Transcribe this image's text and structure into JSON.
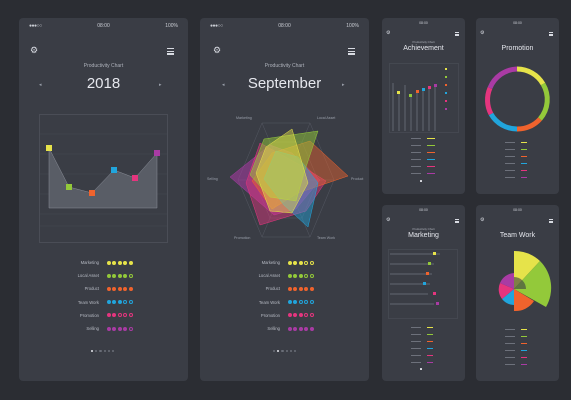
{
  "screens": [
    {
      "status": {
        "signal": "●●●○○",
        "time": "08:00",
        "battery": "100%"
      },
      "subtitle": "Productivity Chart",
      "heading": "2018",
      "categories": [
        "Marketing",
        "Local Asset",
        "Product",
        "Team Work",
        "Promotion",
        "Selling"
      ],
      "ratings": [
        5,
        4,
        5,
        3,
        2,
        4
      ],
      "colors": [
        "#e6e34a",
        "#93c93a",
        "#f0632d",
        "#21a5dc",
        "#e5357e",
        "#a93ba4"
      ],
      "pager": {
        "count": 6,
        "active": 1
      }
    },
    {
      "status": {
        "signal": "●●●○○",
        "time": "08:00",
        "battery": "100%"
      },
      "subtitle": "Productivity Chart",
      "heading": "September",
      "radar_labels": [
        "Marketing",
        "Local Asset",
        "Product",
        "Team Work",
        "Promotion",
        "Selling"
      ],
      "legend": [
        "Marketing",
        "Local Asset",
        "Product",
        "Team Work",
        "Promotion",
        "Selling"
      ],
      "ratings": [
        3,
        3,
        5,
        2,
        3,
        5
      ],
      "colors": [
        "#e6e34a",
        "#93c93a",
        "#f0632d",
        "#21a5dc",
        "#e5357e",
        "#a93ba4"
      ],
      "pager": {
        "count": 6,
        "active": 2
      }
    },
    {
      "status": {
        "time": "08:00"
      },
      "subtitle": "Productivity Chart",
      "heading": "Achievement"
    },
    {
      "status": {
        "time": "08:00"
      },
      "subtitle": "",
      "heading": "Promotion"
    },
    {
      "status": {
        "time": "08:00"
      },
      "subtitle": "Productivity Chart",
      "heading": "Marketing"
    },
    {
      "status": {
        "time": "08:00"
      },
      "subtitle": "",
      "heading": "Team Work"
    }
  ],
  "icons": {
    "settings": "gear-icon",
    "menu": "menu-icon",
    "prev": "chevron-left-icon",
    "next": "chevron-right-icon"
  }
}
